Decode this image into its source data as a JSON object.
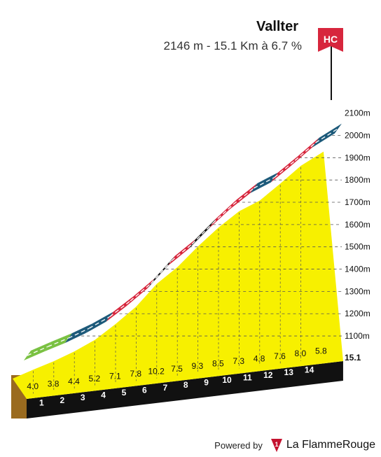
{
  "header": {
    "title": "Vallter",
    "subtitle": "2146 m - 15.1 Km à 6.7 %",
    "category_flag": "HC"
  },
  "footer": {
    "powered_by": "Powered by",
    "brand": "La FlammeRouge",
    "brand_logo_text": "1"
  },
  "colors": {
    "fill": "#f7f000",
    "green": "#7ac142",
    "blue": "#1d5a7a",
    "red": "#d7263d",
    "black": "#111111",
    "flag": "#d7263d"
  },
  "chart_data": {
    "type": "area",
    "title": "Vallter",
    "distance_label": "15.1",
    "x_ticks": [
      "1",
      "2",
      "3",
      "4",
      "5",
      "6",
      "7",
      "8",
      "9",
      "10",
      "11",
      "12",
      "13",
      "14"
    ],
    "y_ticks": [
      {
        "v": 1100,
        "label": "1100m"
      },
      {
        "v": 1200,
        "label": "1200m"
      },
      {
        "v": 1300,
        "label": "1300m"
      },
      {
        "v": 1400,
        "label": "1400m"
      },
      {
        "v": 1500,
        "label": "1500m"
      },
      {
        "v": 1600,
        "label": "1600m"
      },
      {
        "v": 1700,
        "label": "1700m"
      },
      {
        "v": 1800,
        "label": "1800m"
      },
      {
        "v": 1900,
        "label": "1900m"
      },
      {
        "v": 2000,
        "label": "2000m"
      },
      {
        "v": 2100,
        "label": "2100m"
      }
    ],
    "ylim": [
      1028,
      2146
    ],
    "xlim": [
      0,
      15.1
    ],
    "segments": [
      {
        "km_from": 0,
        "km_to": 1,
        "gradient": "4.0",
        "color": "green"
      },
      {
        "km_from": 1,
        "km_to": 2,
        "gradient": "3.8",
        "color": "green"
      },
      {
        "km_from": 2,
        "km_to": 3,
        "gradient": "4.4",
        "color": "blue"
      },
      {
        "km_from": 3,
        "km_to": 4,
        "gradient": "5.2",
        "color": "blue"
      },
      {
        "km_from": 4,
        "km_to": 5,
        "gradient": "7.1",
        "color": "red"
      },
      {
        "km_from": 5,
        "km_to": 6,
        "gradient": "7.8",
        "color": "red"
      },
      {
        "km_from": 6,
        "km_to": 7,
        "gradient": "10.2",
        "color": "black"
      },
      {
        "km_from": 7,
        "km_to": 8,
        "gradient": "7.5",
        "color": "red"
      },
      {
        "km_from": 8,
        "km_to": 9,
        "gradient": "9.3",
        "color": "black"
      },
      {
        "km_from": 9,
        "km_to": 10,
        "gradient": "8.5",
        "color": "red"
      },
      {
        "km_from": 10,
        "km_to": 11,
        "gradient": "7.3",
        "color": "red"
      },
      {
        "km_from": 11,
        "km_to": 12,
        "gradient": "4.8",
        "color": "blue"
      },
      {
        "km_from": 12,
        "km_to": 13,
        "gradient": "7.6",
        "color": "red"
      },
      {
        "km_from": 13,
        "km_to": 14,
        "gradient": "8.0",
        "color": "red"
      },
      {
        "km_from": 14,
        "km_to": 15.1,
        "gradient": "5.8",
        "color": "blue"
      }
    ]
  }
}
